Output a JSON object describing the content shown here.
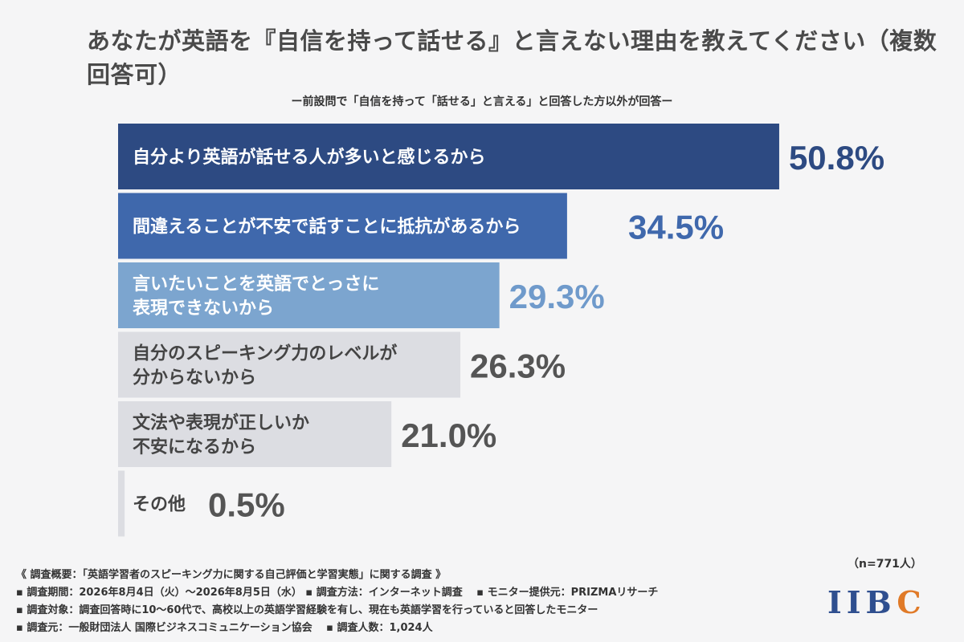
{
  "title": "あなたが英語を『自信を持って話せる』と言えない理由を教えてください（複数回答可）",
  "subtitle": "ー前設問で「自信を持って「話せる」と言える」と回答した方以外が回答ー",
  "chart_data": {
    "type": "bar",
    "orientation": "horizontal",
    "categories": [
      [
        "自分より英語が話せる人が多いと感じるから"
      ],
      [
        "間違えることが不安で話すことに抵抗があるから"
      ],
      [
        "言いたいことを英語でとっさに",
        "表現できないから"
      ],
      [
        "自分のスピーキング力のレベルが",
        "分からないから"
      ],
      [
        "文法や表現が正しいか",
        "不安になるから"
      ],
      [
        "その他"
      ]
    ],
    "values": [
      50.8,
      34.5,
      29.3,
      26.3,
      21.0,
      0.5
    ],
    "value_labels": [
      "50.8%",
      "34.5%",
      "29.3%",
      "26.3%",
      "21.0%",
      "0.5%"
    ],
    "bar_colors": [
      "#2d4a82",
      "#3f68ac",
      "#7ca5cf",
      "#dcdde2",
      "#dcdde2",
      "#dcdde2"
    ],
    "label_colors": [
      "#ffffff",
      "#ffffff",
      "#ffffff",
      "#444444",
      "#444444",
      "#444444"
    ],
    "value_colors": [
      "#2d4a82",
      "#3f68ac",
      "#6f9acb",
      "#555555",
      "#555555",
      "#555555"
    ],
    "xlim": [
      0,
      100
    ]
  },
  "n_label": "（n=771人）",
  "footer": {
    "line1": "《 調査概要：「英語学習者のスピーキング力に関する自己評価と学習実態」に関する調査 》",
    "line2": "▪ 調査期間：2026年8月4日（火）〜2026年8月5日（水） ▪ 調査方法：インターネット調査　 ▪ モニター提供元：PRIZMAリサーチ",
    "line3": "▪ 調査対象：調査回答時に10〜60代で、高校以上の英語学習経験を有し、現在も英語学習を行っていると回答したモニター",
    "line4": "▪ 調査元：一般財団法人 国際ビジネスコミュニケーション協会　 ▪ 調査人数：1,024人"
  },
  "logo": {
    "part1": "IIB",
    "part2": "C"
  }
}
